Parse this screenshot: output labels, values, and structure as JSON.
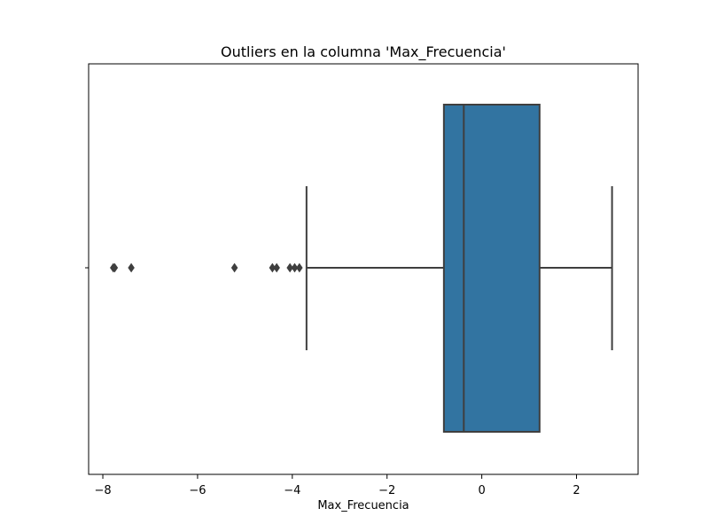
{
  "chart_data": {
    "type": "boxplot",
    "title": "Outliers en la columna 'Max_Frecuencia'",
    "xlabel": "Max_Frecuencia",
    "ylabel": "",
    "orientation": "horizontal",
    "xlim": [
      -8.3,
      3.3
    ],
    "x_ticks": [
      -8,
      -6,
      -4,
      -2,
      0,
      2
    ],
    "x_tick_labels": [
      "−8",
      "−6",
      "−4",
      "−2",
      "0",
      "2"
    ],
    "grid": false,
    "box": {
      "whisker_low": -3.7,
      "q1": -0.8,
      "median": -0.38,
      "q3": 1.22,
      "whisker_high": 2.75,
      "outliers": [
        -7.78,
        -7.75,
        -7.4,
        -5.22,
        -4.42,
        -4.33,
        -4.05,
        -3.95,
        -3.85
      ],
      "fill_color": "#3274a1",
      "line_color": "#3f3f3f"
    }
  }
}
